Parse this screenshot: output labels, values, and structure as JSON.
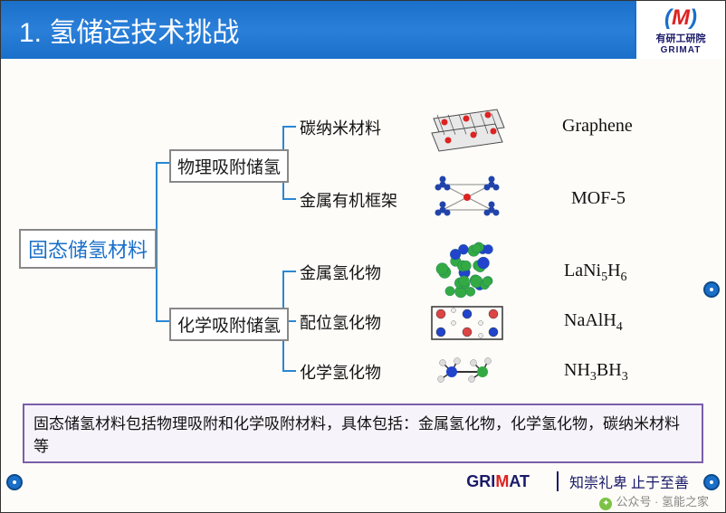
{
  "header": {
    "title": "1. 氢储运技术挑战"
  },
  "logo": {
    "cn": "有研工研院",
    "en": "GRIMAT"
  },
  "tree": {
    "root": "固态储氢材料",
    "cat1": "物理吸附储氢",
    "cat2": "化学吸附储氢",
    "leaves": {
      "l1": "碳纳米材料",
      "l2": "金属有机框架",
      "l3": "金属氢化物",
      "l4": "配位氢化物",
      "l5": "化学氢化物"
    }
  },
  "formulas": {
    "f1": "Graphene",
    "f2": "MOF-5",
    "f3_a": "LaNi",
    "f3_b": "5",
    "f3_c": "H",
    "f3_d": "6",
    "f4_a": "NaAlH",
    "f4_b": "4",
    "f5_a": "NH",
    "f5_b": "3",
    "f5_c": "BH",
    "f5_d": "3"
  },
  "molecules": {
    "graphene": {
      "sheet": "#4a4a4a",
      "atom": "#d22",
      "bg": "#e8e8e8"
    },
    "mof": {
      "node": "#2244aa",
      "center": "#d22",
      "link": "#888"
    },
    "lani": {
      "a": "#33aa44",
      "b": "#2244cc"
    },
    "naalh": {
      "na": "#d44",
      "al": "#2244cc",
      "h": "#eee",
      "box": "#333"
    },
    "nh3bh3": {
      "n": "#2244cc",
      "b": "#33aa44",
      "h": "#ddd",
      "bond": "#333"
    }
  },
  "bracket_color": "#2a87d4",
  "summary": "固态储氢材料包括物理吸附和化学吸附材料，具体包括：金属氢化物，化学氢化物，碳纳米材料等",
  "footer": {
    "brand_a": "GRI",
    "brand_b": "M",
    "brand_c": "AT",
    "motto": "知崇礼卑 止于至善"
  },
  "watermark": "公众号 · 氢能之家"
}
